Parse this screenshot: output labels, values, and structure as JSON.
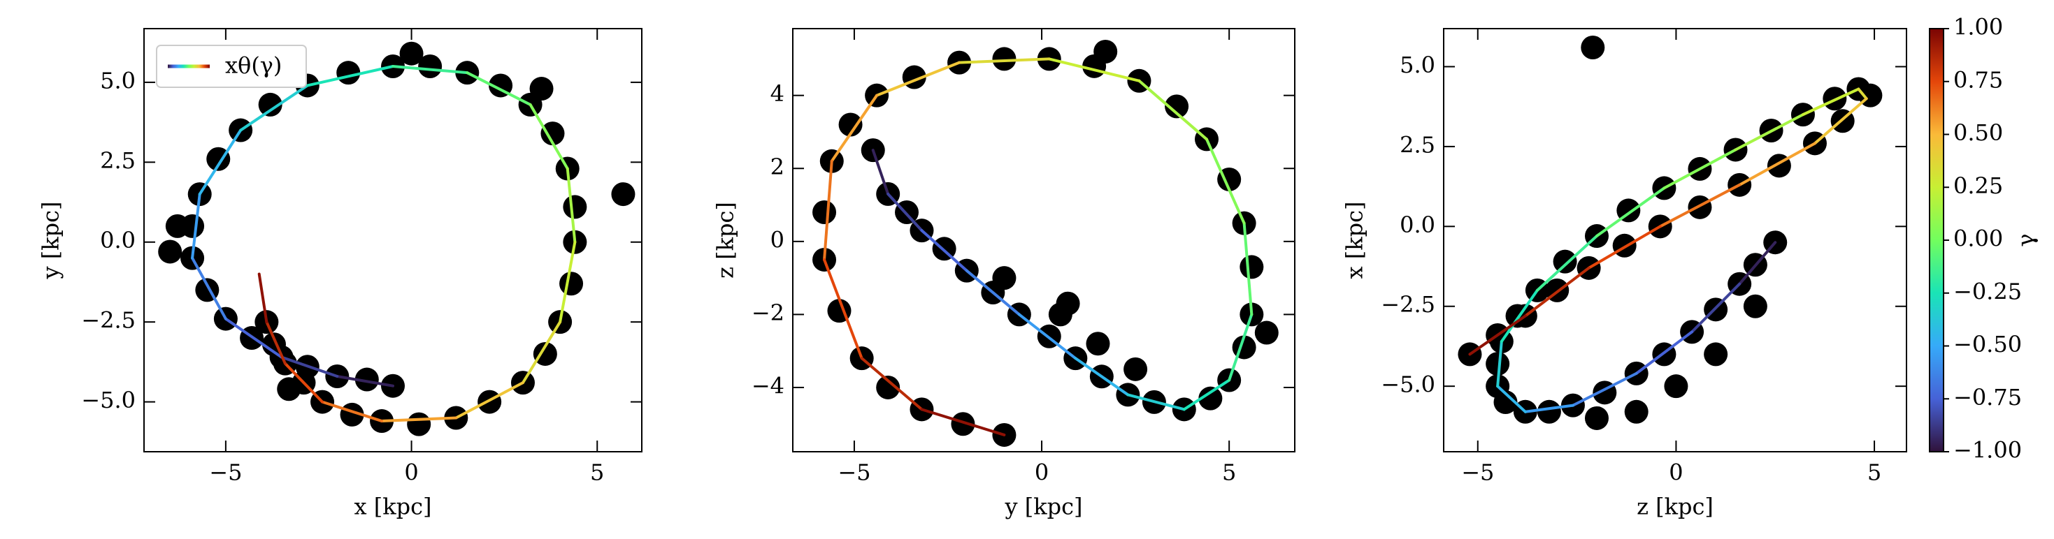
{
  "chart_data": [
    {
      "type": "scatter",
      "xlabel": "x [kpc]",
      "ylabel": "y [kpc]",
      "xlim": [
        -7.2,
        6.2
      ],
      "ylim": [
        -6.56,
        6.68
      ],
      "xticks": [
        {
          "value": -5,
          "label": "−5"
        },
        0,
        5
      ],
      "yticks": [
        {
          "value": -5,
          "label": "−5.0"
        },
        {
          "value": -2.5,
          "label": "−2.5"
        },
        {
          "value": 0,
          "label": "0.0"
        },
        {
          "value": 2.5,
          "label": "2.5"
        },
        {
          "value": 5,
          "label": "5.0"
        }
      ],
      "legend": "upper left",
      "points": {
        "color": "#000000",
        "x": [
          -0.5,
          -1.2,
          -2,
          -2.8,
          -3.5,
          -4.3,
          -5,
          -5.5,
          -5.9,
          -5.9,
          -5.7,
          -5.2,
          -4.6,
          -3.8,
          -2.8,
          -1.7,
          -0.5,
          0.5,
          1.5,
          2.4,
          3.2,
          3.8,
          4.2,
          4.4,
          4.4,
          4.3,
          4,
          3.6,
          3,
          2.1,
          1.2,
          0.2,
          -0.8,
          -1.6,
          -2.4,
          -2.9,
          -3.4,
          -3.7,
          -3.9,
          -6.3,
          5.7,
          -6.5,
          0,
          3.5,
          -3.3
        ],
        "y": [
          -4.5,
          -4.3,
          -4.2,
          -3.9,
          -3.6,
          -3.0,
          -2.4,
          -1.5,
          -0.5,
          0.5,
          1.5,
          2.6,
          3.5,
          4.3,
          4.9,
          5.3,
          5.5,
          5.5,
          5.3,
          4.9,
          4.3,
          3.4,
          2.3,
          1.1,
          0,
          -1.3,
          -2.5,
          -3.5,
          -4.4,
          -5.0,
          -5.5,
          -5.7,
          -5.6,
          -5.4,
          -5.0,
          -4.4,
          -3.8,
          -3.2,
          -2.5,
          0.5,
          1.5,
          -0.3,
          5.9,
          4.8,
          -4.6
        ]
      },
      "curve": {
        "name": "xθ(γ)",
        "gamma": [
          -1,
          -0.9,
          -0.8,
          -0.7,
          -0.6,
          -0.5,
          -0.4,
          -0.3,
          -0.2,
          -0.1,
          0,
          0.1,
          0.2,
          0.3,
          0.4,
          0.5,
          0.6,
          0.7,
          0.8,
          0.9,
          1
        ],
        "x": [
          -0.5,
          -2,
          -3.5,
          -5,
          -5.9,
          -5.7,
          -4.6,
          -2.8,
          -0.5,
          1.5,
          3.2,
          4.2,
          4.4,
          4,
          3,
          1.2,
          -0.8,
          -2.4,
          -3.4,
          -3.9,
          -4.1
        ],
        "y": [
          -4.5,
          -4.2,
          -3.6,
          -2.4,
          -0.5,
          1.5,
          3.5,
          4.9,
          5.5,
          5.3,
          4.3,
          2.3,
          0,
          -2.5,
          -4.4,
          -5.5,
          -5.6,
          -5.0,
          -3.8,
          -2.5,
          -1.0
        ]
      }
    },
    {
      "type": "scatter",
      "xlabel": "y [kpc]",
      "ylabel": "z [kpc]",
      "xlim": [
        -6.64,
        6.75
      ],
      "ylim": [
        -5.76,
        5.83
      ],
      "xticks": [
        {
          "value": -5,
          "label": "−5"
        },
        0,
        5
      ],
      "yticks": [
        {
          "value": -4,
          "label": "−4"
        },
        {
          "value": -2,
          "label": "−2"
        },
        0,
        2,
        4
      ],
      "points": {
        "color": "#000000",
        "x": [
          3.8,
          4.5,
          5.0,
          5.4,
          5.6,
          5.6,
          5.4,
          5.0,
          4.4,
          3.6,
          2.6,
          1.4,
          0.2,
          -1,
          -2.2,
          -3.4,
          -4.4,
          -5.1,
          -5.6,
          -5.8,
          -5.8,
          -5.4,
          -4.8,
          -4.1,
          -3.2,
          -2.1,
          -1.0,
          -4.5,
          -4.1,
          -3.6,
          -3.2,
          -2.6,
          -2,
          -1.3,
          -0.6,
          0.2,
          0.9,
          1.6,
          2.3,
          3.0,
          0.5,
          1.5,
          -1,
          2.5,
          1.7,
          0.7,
          6.0
        ],
        "y": [
          -4.6,
          -4.3,
          -3.8,
          -2.9,
          -2,
          -0.7,
          0.5,
          1.7,
          2.8,
          3.7,
          4.4,
          4.8,
          5.0,
          5.0,
          4.9,
          4.5,
          4.0,
          3.2,
          2.2,
          0.8,
          -0.5,
          -1.9,
          -3.2,
          -4.0,
          -4.6,
          -5.0,
          -5.3,
          2.5,
          1.3,
          0.8,
          0.3,
          -0.2,
          -0.8,
          -1.4,
          -2.0,
          -2.6,
          -3.2,
          -3.7,
          -4.2,
          -4.4,
          -2.0,
          -2.8,
          -1.0,
          -3.5,
          5.2,
          -1.7,
          -2.5
        ]
      },
      "curve": {
        "gamma": [
          -1,
          -0.9,
          -0.8,
          -0.7,
          -0.6,
          -0.5,
          -0.4,
          -0.3,
          -0.2,
          -0.1,
          0,
          0.1,
          0.2,
          0.3,
          0.4,
          0.5,
          0.6,
          0.7,
          0.8,
          0.9,
          1
        ],
        "x": [
          -4.5,
          -4.1,
          -3.2,
          -2,
          -0.6,
          0.9,
          2.3,
          3.8,
          5.0,
          5.6,
          5.4,
          4.4,
          2.6,
          0.2,
          -2.2,
          -4.4,
          -5.6,
          -5.8,
          -4.8,
          -3.2,
          -1.0
        ],
        "y": [
          2.5,
          1.3,
          0.3,
          -0.8,
          -2.0,
          -3.2,
          -4.2,
          -4.6,
          -3.8,
          -2,
          0.5,
          2.8,
          4.4,
          5.0,
          4.9,
          4.0,
          2.2,
          -0.5,
          -3.2,
          -4.6,
          -5.3
        ]
      }
    },
    {
      "type": "scatter",
      "xlabel": "z [kpc]",
      "ylabel": "x [kpc]",
      "xlim": [
        -5.86,
        5.81
      ],
      "ylim": [
        -7.05,
        6.19
      ],
      "xticks": [
        {
          "value": -5,
          "label": "−5"
        },
        0,
        5
      ],
      "yticks": [
        {
          "value": -5,
          "label": "−5.0"
        },
        {
          "value": -2.5,
          "label": "−2.5"
        },
        {
          "value": 0,
          "label": "0.0"
        },
        {
          "value": 2.5,
          "label": "2.5"
        },
        {
          "value": 5,
          "label": "5.0"
        }
      ],
      "points": {
        "color": "#000000",
        "x": [
          2.5,
          2.0,
          1.6,
          1.0,
          0.4,
          -0.3,
          -1.0,
          -1.8,
          -2.6,
          -3.2,
          -3.8,
          -4.3,
          -4.5,
          -4.5,
          -4.4,
          -4.0,
          -3.5,
          -2.8,
          -2.0,
          -1.2,
          -0.3,
          0.6,
          1.5,
          2.4,
          3.2,
          4.0,
          4.6,
          4.9,
          4.2,
          3.5,
          2.6,
          1.6,
          0.6,
          -0.4,
          -1.3,
          -2.2,
          -3.0,
          -3.8,
          -4.5,
          -5.2,
          0,
          -1,
          -2,
          1,
          2,
          -2.1
        ],
        "y": [
          -0.5,
          -1.2,
          -1.8,
          -2.6,
          -3.3,
          -4.0,
          -4.6,
          -5.2,
          -5.6,
          -5.8,
          -5.8,
          -5.5,
          -5.0,
          -4.3,
          -3.6,
          -2.8,
          -2.0,
          -1.1,
          -0.3,
          0.5,
          1.2,
          1.8,
          2.4,
          3.0,
          3.5,
          4.0,
          4.3,
          4.1,
          3.3,
          2.6,
          1.9,
          1.3,
          0.6,
          0,
          -0.6,
          -1.3,
          -2.0,
          -2.8,
          -3.4,
          -4.0,
          -5.0,
          -5.8,
          -6.0,
          -4.0,
          -2.5,
          5.6
        ]
      },
      "curve": {
        "gamma": [
          -1,
          -0.9,
          -0.8,
          -0.7,
          -0.6,
          -0.5,
          -0.4,
          -0.3,
          -0.2,
          -0.1,
          0,
          0.1,
          0.2,
          0.3,
          0.4,
          0.5,
          0.6,
          0.7,
          0.8,
          0.9,
          1
        ],
        "x": [
          2.5,
          1.6,
          0.4,
          -1.0,
          -2.6,
          -3.8,
          -4.5,
          -4.4,
          -3.5,
          -2.0,
          -0.3,
          1.5,
          3.2,
          4.6,
          4.8,
          3.5,
          1.6,
          -0.4,
          -2.2,
          -3.8,
          -5.2
        ],
        "y": [
          -0.5,
          -1.8,
          -3.3,
          -4.6,
          -5.6,
          -5.8,
          -5.0,
          -3.6,
          -2.0,
          -0.3,
          1.2,
          2.4,
          3.5,
          4.3,
          4.0,
          2.6,
          1.3,
          0,
          -1.3,
          -2.8,
          -4.0
        ]
      }
    }
  ],
  "colorbar": {
    "label": "γ",
    "lim": [
      -1,
      1
    ],
    "colormap": [
      "#30123b",
      "#4662d7",
      "#36aaf9",
      "#1ae4b6",
      "#72fe5e",
      "#c8ef34",
      "#faba39",
      "#e4460a",
      "#7a0403"
    ],
    "ticks": [
      {
        "value": -1,
        "label": "−1.00"
      },
      {
        "value": -0.75,
        "label": "−0.75"
      },
      {
        "value": -0.5,
        "label": "−0.50"
      },
      {
        "value": -0.25,
        "label": "−0.25"
      },
      {
        "value": 0,
        "label": "0.00"
      },
      {
        "value": 0.25,
        "label": "0.25"
      },
      {
        "value": 0.5,
        "label": "0.50"
      },
      {
        "value": 0.75,
        "label": "0.75"
      },
      {
        "value": 1,
        "label": "1.00"
      }
    ]
  }
}
